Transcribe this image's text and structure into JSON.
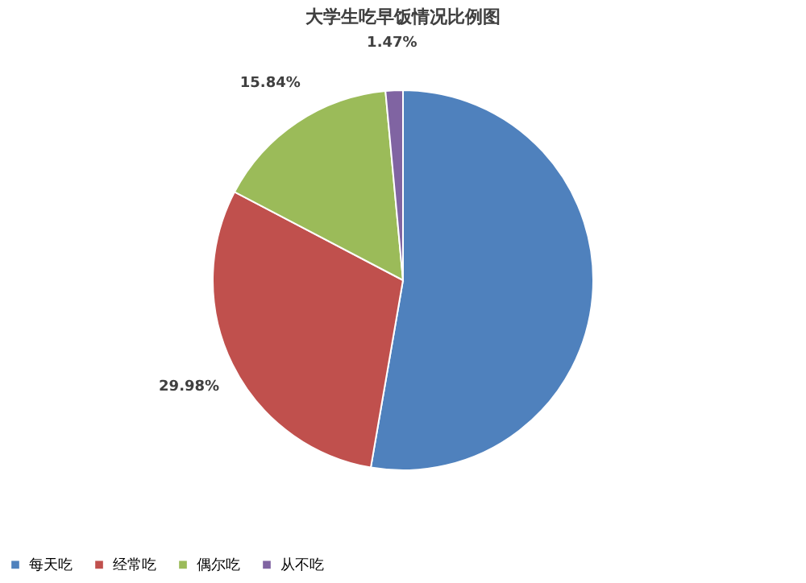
{
  "chart_data": {
    "type": "pie",
    "title": "大学生吃早饭情况比例图",
    "categories": [
      "每天吃",
      "经常吃",
      "偶尔吃",
      "从不吃"
    ],
    "values": [
      52.71,
      29.98,
      15.84,
      1.47
    ],
    "colors": [
      "#4f81bd",
      "#c0504d",
      "#9bbb59",
      "#8064a2"
    ],
    "value_labels": [
      null,
      "29.98%",
      "15.84%",
      "1.47%"
    ],
    "legend": "bottom"
  }
}
